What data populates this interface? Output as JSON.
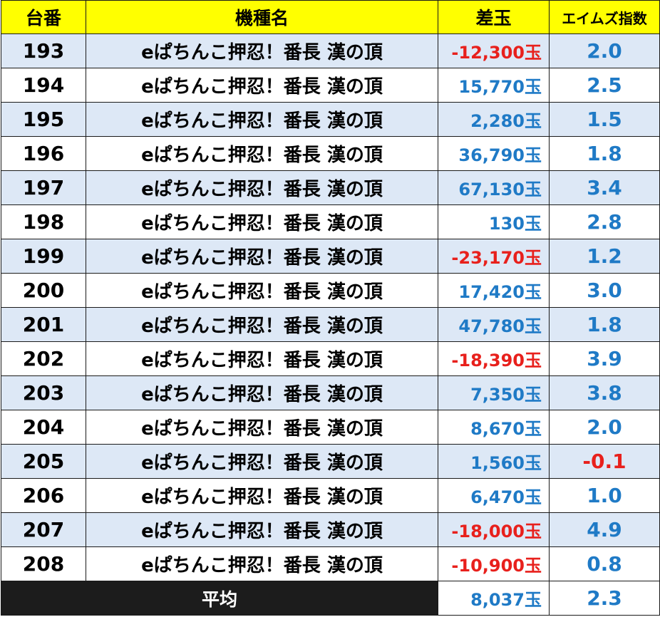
{
  "header": {
    "col_no": "台番",
    "col_model": "機種名",
    "col_diff": "差玉",
    "col_index": "エイムズ指数"
  },
  "colors": {
    "header_bg": "#ffff00",
    "row_alt_bg": "#dde8f6",
    "positive": "#1f7ac6",
    "negative": "#e8201c",
    "average_label_bg": "#1c1c1c"
  },
  "rows": [
    {
      "no": "193",
      "model": "eぱちんこ押忍！番長 漢の頂",
      "diff": "-12,300玉",
      "index": "2.0"
    },
    {
      "no": "194",
      "model": "eぱちんこ押忍！番長 漢の頂",
      "diff": "15,770玉",
      "index": "2.5"
    },
    {
      "no": "195",
      "model": "eぱちんこ押忍！番長 漢の頂",
      "diff": "2,280玉",
      "index": "1.5"
    },
    {
      "no": "196",
      "model": "eぱちんこ押忍！番長 漢の頂",
      "diff": "36,790玉",
      "index": "1.8"
    },
    {
      "no": "197",
      "model": "eぱちんこ押忍！番長 漢の頂",
      "diff": "67,130玉",
      "index": "3.4"
    },
    {
      "no": "198",
      "model": "eぱちんこ押忍！番長 漢の頂",
      "diff": "130玉",
      "index": "2.8"
    },
    {
      "no": "199",
      "model": "eぱちんこ押忍！番長 漢の頂",
      "diff": "-23,170玉",
      "index": "1.2"
    },
    {
      "no": "200",
      "model": "eぱちんこ押忍！番長 漢の頂",
      "diff": "17,420玉",
      "index": "3.0"
    },
    {
      "no": "201",
      "model": "eぱちんこ押忍！番長 漢の頂",
      "diff": "47,780玉",
      "index": "1.8"
    },
    {
      "no": "202",
      "model": "eぱちんこ押忍！番長 漢の頂",
      "diff": "-18,390玉",
      "index": "3.9"
    },
    {
      "no": "203",
      "model": "eぱちんこ押忍！番長 漢の頂",
      "diff": "7,350玉",
      "index": "3.8"
    },
    {
      "no": "204",
      "model": "eぱちんこ押忍！番長 漢の頂",
      "diff": "8,670玉",
      "index": "2.0"
    },
    {
      "no": "205",
      "model": "eぱちんこ押忍！番長 漢の頂",
      "diff": "1,560玉",
      "index": "-0.1"
    },
    {
      "no": "206",
      "model": "eぱちんこ押忍！番長 漢の頂",
      "diff": "6,470玉",
      "index": "1.0"
    },
    {
      "no": "207",
      "model": "eぱちんこ押忍！番長 漢の頂",
      "diff": "-18,000玉",
      "index": "4.9"
    },
    {
      "no": "208",
      "model": "eぱちんこ押忍！番長 漢の頂",
      "diff": "-10,900玉",
      "index": "0.8"
    }
  ],
  "average": {
    "label": "平均",
    "diff": "8,037玉",
    "index": "2.3"
  }
}
